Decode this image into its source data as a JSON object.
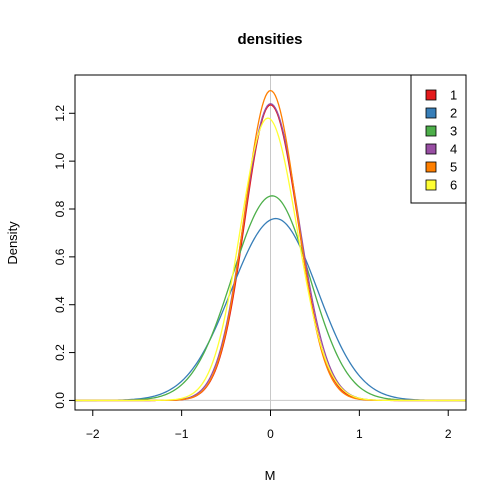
{
  "chart_data": {
    "type": "line",
    "title": "densities",
    "xlabel": "M",
    "ylabel": "Density",
    "xlim": [
      -2.2,
      2.2
    ],
    "ylim": [
      -0.04,
      1.36
    ],
    "xticks": [
      -2,
      -1,
      0,
      1,
      2
    ],
    "xtick_labels": [
      "−2",
      "−1",
      "0",
      "1",
      "2"
    ],
    "yticks": [
      0.0,
      0.2,
      0.4,
      0.6,
      0.8,
      1.0,
      1.2
    ],
    "ytick_labels": [
      "0.0",
      "0.2",
      "0.4",
      "0.6",
      "0.8",
      "1.0",
      "1.2"
    ],
    "reference_lines": {
      "vertical_x": 0,
      "horizontal_y": 0,
      "color": "#c8c8c8"
    },
    "legend_position": "top-right",
    "series": [
      {
        "name": "1",
        "color": "#E41A1C",
        "peak_x": 0.0,
        "peak_y": 1.235,
        "sd_left": 0.29,
        "sd_right": 0.31
      },
      {
        "name": "2",
        "color": "#377EB8",
        "peak_x": 0.06,
        "peak_y": 0.76,
        "sd_left": 0.5,
        "sd_right": 0.47
      },
      {
        "name": "3",
        "color": "#4DAF4A",
        "peak_x": 0.02,
        "peak_y": 0.855,
        "sd_left": 0.45,
        "sd_right": 0.42
      },
      {
        "name": "4",
        "color": "#984EA3",
        "peak_x": 0.0,
        "peak_y": 1.24,
        "sd_left": 0.3,
        "sd_right": 0.32
      },
      {
        "name": "5",
        "color": "#FF7F00",
        "peak_x": 0.0,
        "peak_y": 1.295,
        "sd_left": 0.29,
        "sd_right": 0.3
      },
      {
        "name": "6",
        "color": "#FFFF33",
        "peak_x": -0.03,
        "peak_y": 1.18,
        "sd_left": 0.31,
        "sd_right": 0.33
      }
    ]
  }
}
